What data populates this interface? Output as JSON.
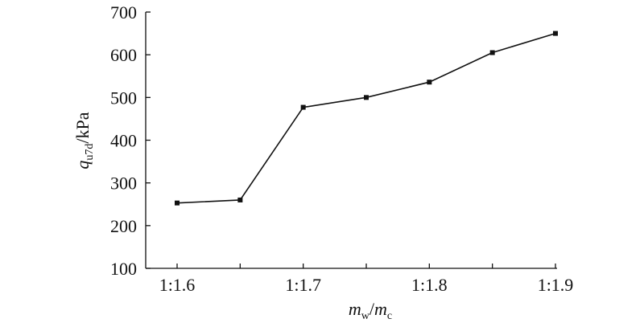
{
  "chart_data": {
    "type": "line",
    "x_label": {
      "symbol": "m",
      "symbol_sub": "w",
      "separator": "/",
      "symbol2": "m",
      "symbol2_sub": "c"
    },
    "y_label": {
      "symbol": "q",
      "symbol_sub": "u7d",
      "unit": "/kPa"
    },
    "categories": [
      "1:1.6",
      null,
      "1:1.7",
      null,
      "1:1.8",
      null,
      "1:1.9"
    ],
    "values": [
      253,
      260,
      477,
      500,
      536,
      605,
      650
    ],
    "color": "#111111",
    "ylim": [
      100,
      700
    ],
    "yticks": [
      100,
      200,
      300,
      400,
      500,
      600,
      700
    ]
  }
}
